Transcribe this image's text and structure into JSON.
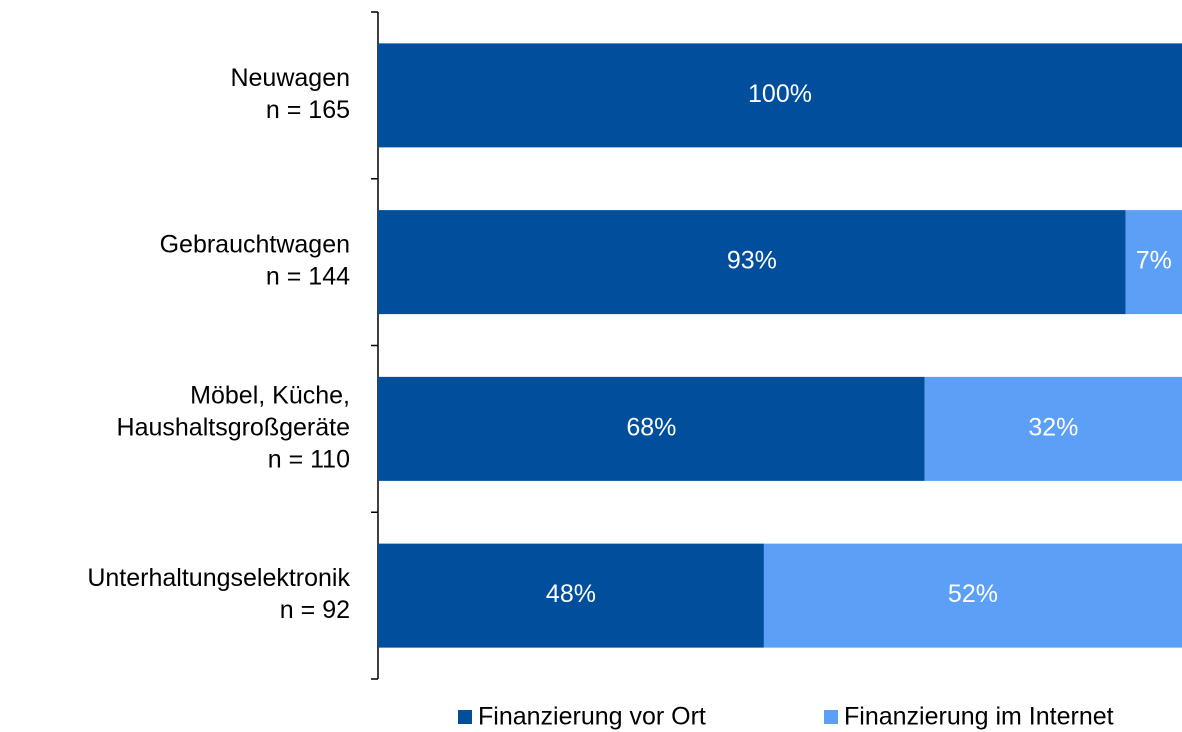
{
  "chart_data": {
    "type": "stacked_bar_horizontal",
    "categories": [
      [
        "Neuwagen",
        "n = 165"
      ],
      [
        "Gebrauchtwagen",
        "n = 144"
      ],
      [
        "Möbel, Küche,",
        "Haushaltsgroßgeräte",
        "n = 110"
      ],
      [
        "Unterhaltungselektronik",
        "n = 92"
      ]
    ],
    "series": [
      {
        "name": "Finanzierung vor Ort",
        "color": "#004e9c",
        "values": [
          100,
          93,
          68,
          48
        ],
        "value_labels": [
          "100%",
          "93%",
          "68%",
          "48%"
        ]
      },
      {
        "name": "Finanzierung im Internet",
        "color": "#5c9ff6",
        "values": [
          0,
          7,
          32,
          52
        ],
        "value_labels": [
          null,
          "7%",
          "32%",
          "52%"
        ]
      }
    ],
    "xlim": [
      0,
      100
    ]
  }
}
